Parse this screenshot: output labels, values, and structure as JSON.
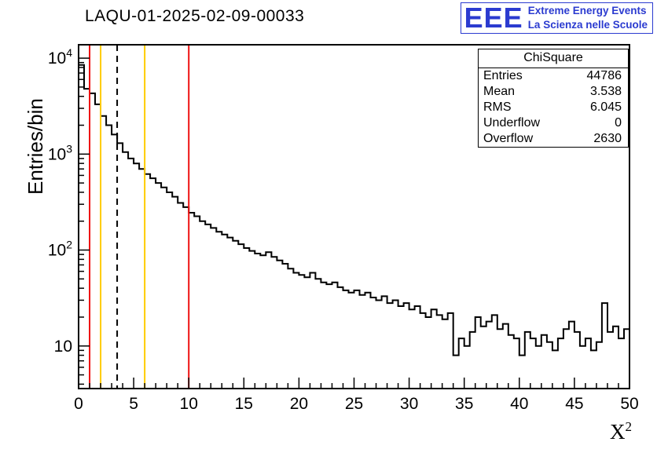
{
  "title": "LAQU-01-2025-02-09-00033",
  "logo": {
    "letters": "EEE",
    "line1": "Extreme Energy Events",
    "line2": "La Scienza nelle Scuole",
    "color": "#2b3bd0"
  },
  "stats": {
    "header": "ChiSquare",
    "rows": [
      {
        "label": "Entries",
        "value": "44786"
      },
      {
        "label": "Mean",
        "value": "3.538"
      },
      {
        "label": "RMS",
        "value": "6.045"
      },
      {
        "label": "Underflow",
        "value": "0"
      },
      {
        "label": "Overflow",
        "value": "2630"
      }
    ]
  },
  "chart_data": {
    "type": "bar",
    "style": "step-histogram",
    "title": "LAQU-01-2025-02-09-00033",
    "xlabel": "X^2",
    "xlabel_base": "X",
    "xlabel_exp": "2",
    "ylabel": "Entries/bin",
    "xlim": [
      0,
      50
    ],
    "ylim": [
      3.6,
      13800
    ],
    "yscale": "log",
    "grid": false,
    "x_start": 0,
    "bin_width": 0.5,
    "values": [
      8500,
      4800,
      4300,
      3300,
      2500,
      2000,
      1600,
      1300,
      1050,
      900,
      800,
      700,
      620,
      560,
      500,
      450,
      400,
      360,
      310,
      280,
      245,
      225,
      200,
      185,
      170,
      155,
      145,
      135,
      125,
      115,
      105,
      98,
      92,
      88,
      95,
      85,
      78,
      72,
      64,
      58,
      55,
      52,
      58,
      50,
      46,
      44,
      46,
      41,
      38,
      36,
      38,
      34,
      36,
      32,
      30,
      33,
      28,
      30,
      26,
      28,
      24,
      26,
      22,
      20,
      24,
      21,
      19,
      22,
      8,
      12,
      10,
      14,
      20,
      16,
      18,
      21,
      15,
      17,
      13,
      12,
      8,
      14,
      12,
      10,
      13,
      11,
      9,
      12,
      15,
      18,
      14,
      10,
      12,
      9,
      11,
      28,
      14,
      16,
      12,
      15
    ],
    "xticks": [
      0,
      5,
      10,
      15,
      20,
      25,
      30,
      35,
      40,
      45,
      50
    ],
    "xticks_minor_step": 1,
    "yticks": [
      {
        "value": 10,
        "base": "10",
        "exp": ""
      },
      {
        "value": 100,
        "base": "10",
        "exp": "2"
      },
      {
        "value": 1000,
        "base": "10",
        "exp": "3"
      },
      {
        "value": 10000,
        "base": "10",
        "exp": "4"
      }
    ],
    "line_color": "#000000",
    "vlines": [
      {
        "x": 1,
        "color": "#ee1111",
        "style": "solid"
      },
      {
        "x": 2,
        "color": "#ffcc00",
        "style": "solid"
      },
      {
        "x": 3.5,
        "color": "#000000",
        "style": "dashed"
      },
      {
        "x": 6,
        "color": "#ffcc00",
        "style": "solid"
      },
      {
        "x": 10,
        "color": "#ee1111",
        "style": "solid"
      }
    ]
  }
}
